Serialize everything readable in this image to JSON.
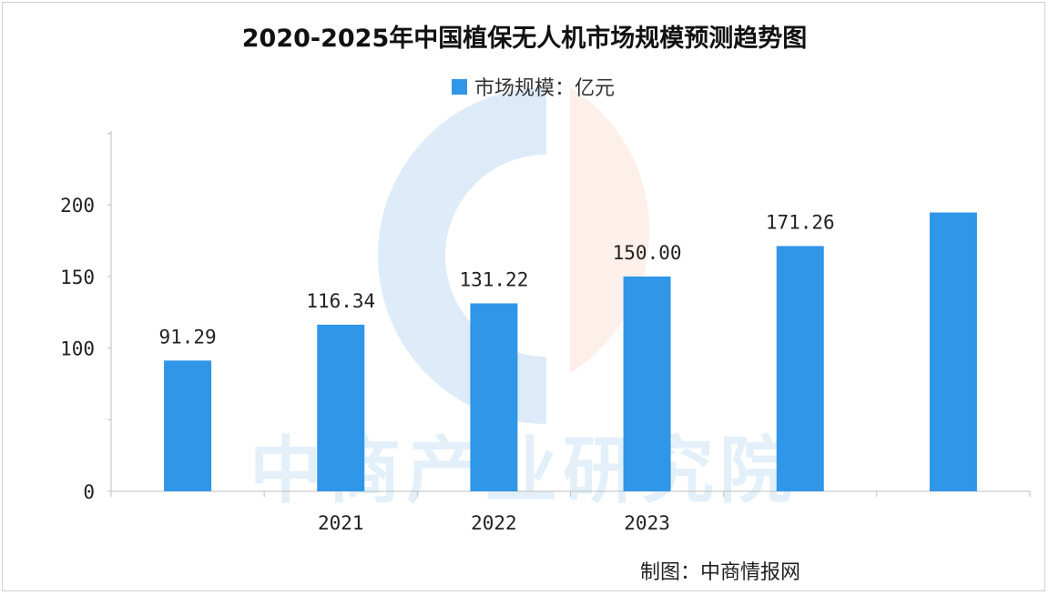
{
  "chart_data": {
    "type": "bar",
    "title": "2020-2025年中国植保无人机市场规模预测趋势图",
    "legend": {
      "label": "市场规模：亿元",
      "placement": "top-center"
    },
    "categories": [
      "",
      "2021",
      "2022",
      "2023",
      "",
      ""
    ],
    "series": [
      {
        "name": "市场规模：亿元",
        "values": [
          91.29,
          116.34,
          131.22,
          150.0,
          171.26,
          194.7
        ],
        "labels": [
          "91.29",
          "116.34",
          "131.22",
          "150.00",
          "171.26",
          ""
        ]
      }
    ],
    "y_ticks": [
      {
        "value": 0,
        "label": "0"
      },
      {
        "value": 100,
        "label": "100"
      },
      {
        "value": 150,
        "label": "150"
      },
      {
        "value": 200,
        "label": "200"
      }
    ],
    "y_axis": {
      "breaks": [
        [
          0,
          50
        ],
        [
          50,
          100
        ]
      ],
      "unit_per_segment": 50
    },
    "grid": false,
    "colors": {
      "bar": "#2f96e8",
      "axis": "#bfbfbf",
      "watermark": "#2f8fe0",
      "logo_left": "#3a8fdc",
      "logo_right": "#f4a27a"
    }
  },
  "watermark": {
    "text": "中商产业研究院"
  },
  "credit": {
    "text": "制图：中商情报网"
  }
}
